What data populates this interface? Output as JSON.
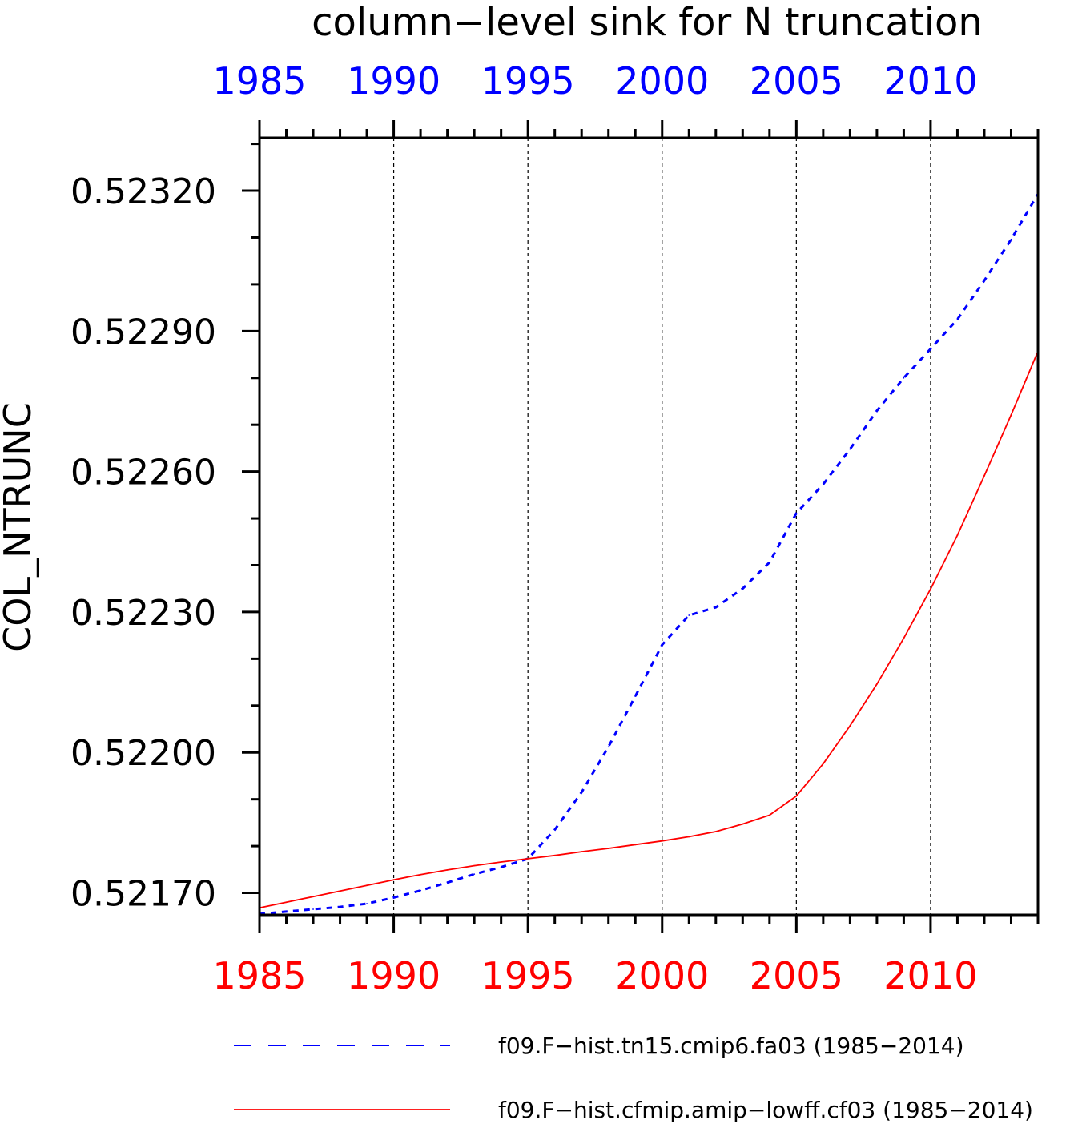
{
  "chart_data": {
    "type": "line",
    "title": "column−level sink for N truncation",
    "xlabel": "",
    "ylabel": "COL_NTRUNC",
    "xlim": [
      1985,
      2014
    ],
    "ylim": [
      0.521653,
      0.523313
    ],
    "x_ticks": [
      1985,
      1990,
      1995,
      2000,
      2005,
      2010
    ],
    "x_tick_labels": [
      "1985",
      "1990",
      "1995",
      "2000",
      "2005",
      "2010"
    ],
    "y_ticks": [
      0.5217,
      0.522,
      0.5223,
      0.5226,
      0.5229,
      0.5232
    ],
    "y_tick_labels": [
      "0.52170",
      "0.52200",
      "0.52230",
      "0.52260",
      "0.52290",
      "0.52320"
    ],
    "grid": "vertical dotted lines at major x ticks",
    "legend_position": "bottom",
    "x": [
      1985,
      1986,
      1987,
      1988,
      1989,
      1990,
      1991,
      1992,
      1993,
      1994,
      1995,
      1996,
      1997,
      1998,
      1999,
      2000,
      2001,
      2002,
      2003,
      2004,
      2005,
      2006,
      2007,
      2008,
      2009,
      2010,
      2011,
      2012,
      2013,
      2014
    ],
    "series": [
      {
        "name": "f09.F−hist.tn15.cmip6.fa03 (1985−2014)",
        "color": "#0000ff",
        "style": "dashed",
        "values": [
          0.521655,
          0.52166,
          0.521665,
          0.52167,
          0.521677,
          0.52169,
          0.521705,
          0.521722,
          0.52174,
          0.521755,
          0.521773,
          0.521835,
          0.521915,
          0.522012,
          0.52212,
          0.52223,
          0.522293,
          0.52231,
          0.52235,
          0.522406,
          0.522511,
          0.522573,
          0.522648,
          0.52273,
          0.5228,
          0.522862,
          0.522925,
          0.523008,
          0.523096,
          0.523193
        ]
      },
      {
        "name": "f09.F−hist.cfmip.amip−lowff.cf03 (1985−2014)",
        "color": "#ff0000",
        "style": "solid",
        "values": [
          0.521668,
          0.52168,
          0.521692,
          0.521704,
          0.521716,
          0.521728,
          0.521739,
          0.521749,
          0.521758,
          0.521766,
          0.521773,
          0.52178,
          0.521788,
          0.521795,
          0.521803,
          0.521811,
          0.52182,
          0.521831,
          0.521847,
          0.521866,
          0.521907,
          0.521976,
          0.522057,
          0.522146,
          0.522244,
          0.522349,
          0.522464,
          0.522591,
          0.522721,
          0.522857
        ]
      }
    ]
  }
}
